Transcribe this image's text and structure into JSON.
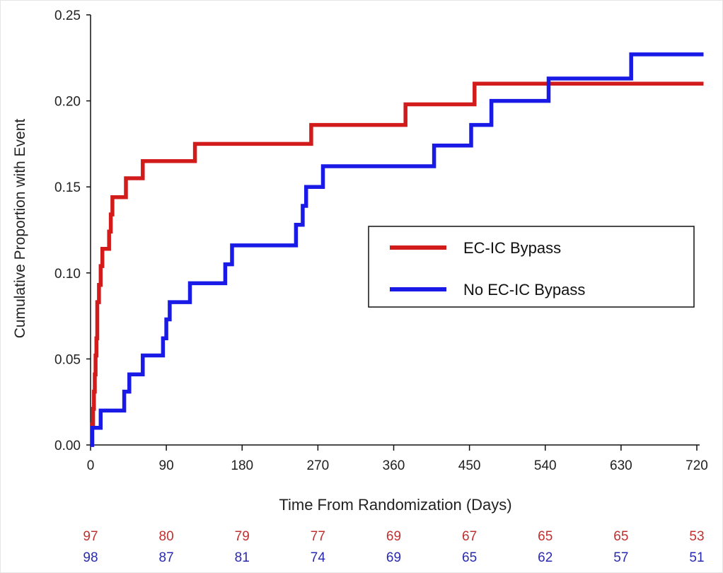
{
  "chart_data": {
    "type": "line",
    "subtype": "step",
    "title": "",
    "xlabel": "Time From Randomization (Days)",
    "ylabel": "Cumulative Proportion with Event",
    "xlim": [
      0,
      720
    ],
    "ylim": [
      0,
      0.25
    ],
    "xticks": [
      "0",
      "90",
      "180",
      "270",
      "360",
      "450",
      "540",
      "630",
      "720"
    ],
    "yticks": [
      "0.00",
      "0.05",
      "0.10",
      "0.15",
      "0.20",
      "0.25"
    ],
    "colors": {
      "ec_ic": "#d21c1c",
      "no_ec_ic": "#1a1ae6",
      "ec_ic_count": "#c03030",
      "no_ec_ic_count": "#2a2ab0"
    },
    "legend": {
      "position": "center-right",
      "entries": [
        "EC-IC Bypass",
        "No EC-IC Bypass"
      ]
    },
    "series": [
      {
        "name": "EC-IC Bypass",
        "key": "ec_ic",
        "x": [
          0,
          2,
          3,
          4,
          5,
          6,
          7,
          8,
          10,
          12,
          14,
          20,
          22,
          24,
          26,
          28,
          42,
          62,
          124,
          262,
          374,
          456,
          728
        ],
        "y": [
          0,
          0.012,
          0.021,
          0.031,
          0.041,
          0.052,
          0.062,
          0.083,
          0.093,
          0.104,
          0.114,
          0.114,
          0.124,
          0.134,
          0.144,
          0.144,
          0.155,
          0.165,
          0.175,
          0.186,
          0.198,
          0.21,
          0.21
        ]
      },
      {
        "name": "No EC-IC Bypass",
        "key": "no_ec_ic",
        "x": [
          0,
          2,
          12,
          40,
          46,
          62,
          86,
          90,
          94,
          100,
          118,
          160,
          168,
          244,
          252,
          256,
          260,
          276,
          408,
          452,
          476,
          544,
          642,
          728
        ],
        "y": [
          0,
          0.01,
          0.02,
          0.031,
          0.041,
          0.052,
          0.062,
          0.073,
          0.083,
          0.083,
          0.094,
          0.105,
          0.116,
          0.128,
          0.139,
          0.15,
          0.15,
          0.162,
          0.174,
          0.186,
          0.2,
          0.213,
          0.227,
          0.227
        ]
      }
    ],
    "at_risk": {
      "times": [
        0,
        90,
        180,
        270,
        360,
        450,
        540,
        630,
        720
      ],
      "ec_ic": [
        "97",
        "80",
        "79",
        "77",
        "69",
        "67",
        "65",
        "65",
        "53"
      ],
      "no_ec_ic": [
        "98",
        "87",
        "81",
        "74",
        "69",
        "65",
        "62",
        "57",
        "51"
      ]
    }
  }
}
